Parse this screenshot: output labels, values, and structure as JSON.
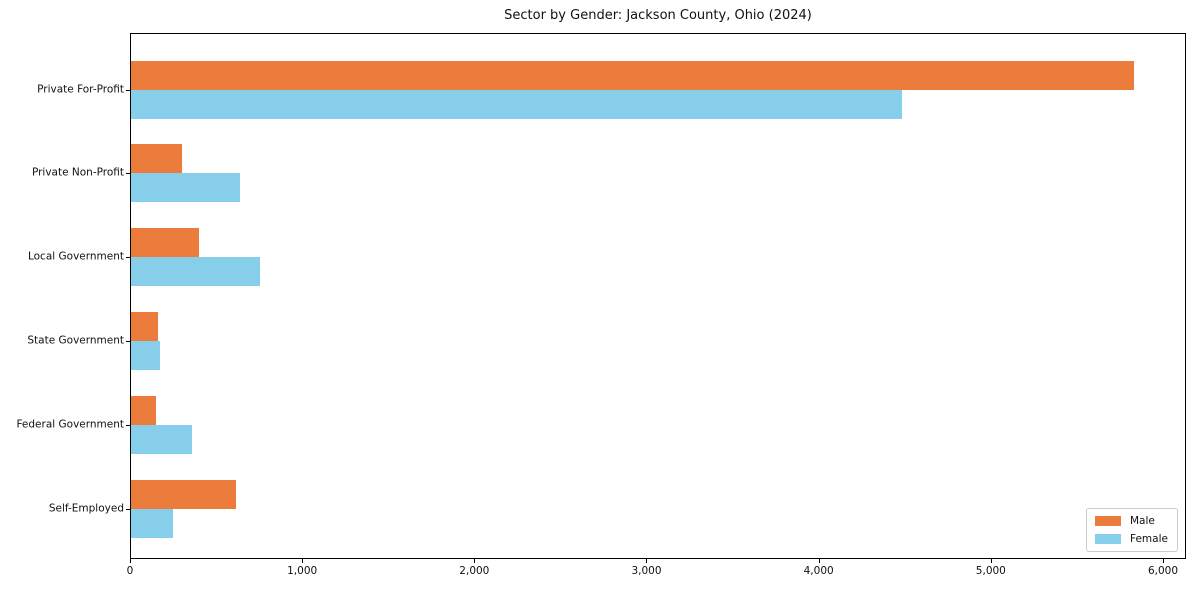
{
  "chart_data": {
    "type": "bar",
    "orientation": "horizontal",
    "title": "Sector by Gender: Jackson County, Ohio (2024)",
    "categories": [
      "Private For-Profit",
      "Private Non-Profit",
      "Local Government",
      "State Government",
      "Federal Government",
      "Self-Employed"
    ],
    "series": [
      {
        "name": "Male",
        "color": "#EC7C3B",
        "values": [
          5826,
          296,
          394,
          158,
          145,
          609
        ]
      },
      {
        "name": "Female",
        "color": "#87CEEB",
        "values": [
          4481,
          632,
          748,
          170,
          355,
          243
        ]
      }
    ],
    "xlabel": "",
    "ylabel": "",
    "xlim": [
      0,
      6122
    ],
    "x_tick_values": [
      0,
      1000,
      2000,
      3000,
      4000,
      5000,
      6000
    ],
    "x_tick_labels": [
      "0",
      "1,000",
      "2,000",
      "3,000",
      "4,000",
      "5,000",
      "6,000"
    ],
    "grid": false,
    "legend": {
      "position": "lower right",
      "labels": [
        "Male",
        "Female"
      ]
    }
  },
  "colors": {
    "background": "#ffffff",
    "spine": "#000000",
    "text": "#111111",
    "legend_border": "#cccccc",
    "male": "#EC7C3B",
    "female": "#87CEEB"
  }
}
